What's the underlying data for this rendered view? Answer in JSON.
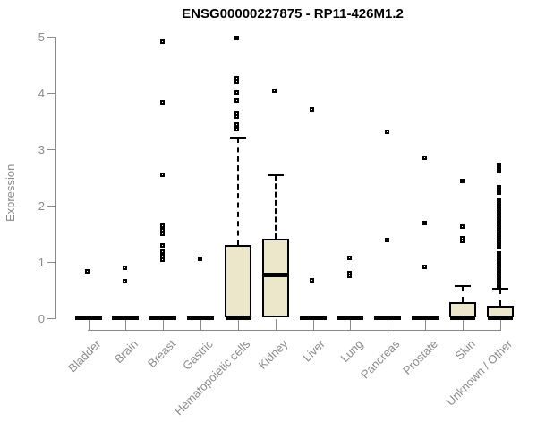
{
  "chart_data": {
    "type": "boxplot",
    "title": "ENSG00000227875 - RP11-426M1.2",
    "ylabel": "Expression",
    "xlabel": "",
    "ylim": [
      0,
      5
    ],
    "yticks": [
      0,
      1,
      2,
      3,
      4,
      5
    ],
    "grid": false,
    "legend": "none",
    "box_fill_color": "#ECE7CA",
    "box_border_color": "#000000",
    "axis_color": "#8a8a8a",
    "title_color": "#000000",
    "categories": [
      "Bladder",
      "Brain",
      "Breast",
      "Gastric",
      "Hematopoietic cells",
      "Kidney",
      "Liver",
      "Lung",
      "Pancreas",
      "Prostate",
      "Skin",
      "Unknown / Other"
    ],
    "series": [
      {
        "category": "Bladder",
        "q1": 0,
        "median": 0,
        "q3": 0,
        "whisker_low": 0,
        "whisker_high": 0,
        "outliers": [
          0.83
        ]
      },
      {
        "category": "Brain",
        "q1": 0,
        "median": 0,
        "q3": 0,
        "whisker_low": 0,
        "whisker_high": 0,
        "outliers": [
          0.89,
          0.65
        ]
      },
      {
        "category": "Breast",
        "q1": 0,
        "median": 0,
        "q3": 0,
        "whisker_low": 0,
        "whisker_high": 0,
        "outliers": [
          4.92,
          3.83,
          2.54,
          1.63,
          1.56,
          1.49,
          1.29,
          1.17,
          1.1,
          1.03
        ]
      },
      {
        "category": "Gastric",
        "q1": 0,
        "median": 0,
        "q3": 0,
        "whisker_low": 0,
        "whisker_high": 0,
        "outliers": [
          1.05
        ]
      },
      {
        "category": "Hematopoietic cells",
        "q1": 0,
        "median": 0,
        "q3": 1.3,
        "whisker_low": 0,
        "whisker_high": 3.2,
        "outliers": [
          4.97,
          4.26,
          4.19,
          4.01,
          3.86,
          3.64,
          3.57,
          3.43,
          3.36
        ]
      },
      {
        "category": "Kidney",
        "q1": 0,
        "median": 0.77,
        "q3": 1.41,
        "whisker_low": 0,
        "whisker_high": 2.53,
        "outliers": [
          4.04
        ]
      },
      {
        "category": "Liver",
        "q1": 0,
        "median": 0,
        "q3": 0,
        "whisker_low": 0,
        "whisker_high": 0,
        "outliers": [
          3.7,
          0.67
        ]
      },
      {
        "category": "Lung",
        "q1": 0,
        "median": 0,
        "q3": 0,
        "whisker_low": 0,
        "whisker_high": 0,
        "outliers": [
          1.06,
          0.79,
          0.74
        ]
      },
      {
        "category": "Pancreas",
        "q1": 0,
        "median": 0,
        "q3": 0,
        "whisker_low": 0,
        "whisker_high": 0,
        "outliers": [
          3.3,
          1.38
        ]
      },
      {
        "category": "Prostate",
        "q1": 0,
        "median": 0,
        "q3": 0,
        "whisker_low": 0,
        "whisker_high": 0,
        "outliers": [
          2.84,
          1.68,
          0.91
        ]
      },
      {
        "category": "Skin",
        "q1": 0,
        "median": 0,
        "q3": 0.28,
        "whisker_low": 0,
        "whisker_high": 0.56,
        "outliers": [
          2.43,
          1.62,
          1.42,
          1.36
        ]
      },
      {
        "category": "Unknown / Other",
        "q1": 0,
        "median": 0,
        "q3": 0.22,
        "whisker_low": 0,
        "whisker_high": 0.52,
        "outliers": [
          2.72,
          2.66,
          2.6,
          2.32,
          2.22,
          2.1,
          2.04,
          1.98,
          1.92,
          1.86,
          1.8,
          1.74,
          1.68,
          1.62,
          1.56,
          1.5,
          1.46,
          1.38,
          1.32,
          1.26,
          1.14,
          1.08,
          1.02,
          0.96,
          0.9,
          0.84,
          0.78,
          0.72,
          0.66,
          0.6,
          0.56
        ]
      }
    ]
  }
}
